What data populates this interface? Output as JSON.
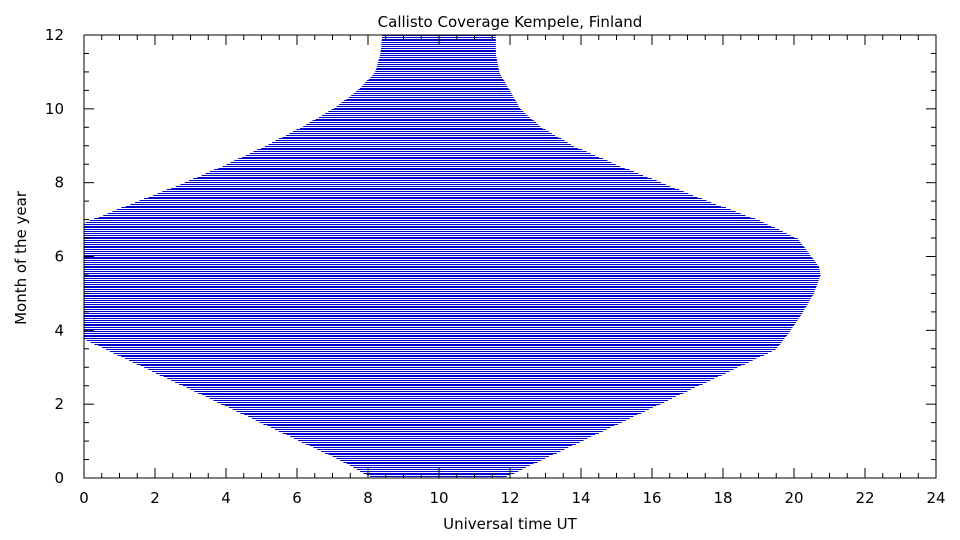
{
  "chart_data": {
    "type": "area",
    "title": "Callisto Coverage Kempele, Finland",
    "xlabel": "Universal time UT",
    "ylabel": "Month of the year",
    "xlim": [
      0,
      24
    ],
    "ylim": [
      0,
      12
    ],
    "x_ticks": [
      "0",
      "2",
      "4",
      "6",
      "8",
      "10",
      "12",
      "14",
      "16",
      "18",
      "20",
      "22",
      "24"
    ],
    "y_ticks": [
      "0",
      "2",
      "4",
      "6",
      "8",
      "10",
      "12"
    ],
    "grid": false,
    "fill_color": "#0000cc",
    "series": [
      {
        "month": [
          0.0,
          0.5,
          1.0,
          1.5,
          2.0,
          2.5,
          3.0,
          3.5,
          4.0,
          4.5,
          5.0,
          5.5,
          5.75,
          6.0,
          6.5,
          7.0,
          7.5,
          8.0,
          8.5,
          9.0,
          9.5,
          10.0,
          10.5,
          11.0,
          11.5,
          12.0
        ],
        "start_ut": [
          8.15,
          7.2,
          6.1,
          5.0,
          3.9,
          2.8,
          1.7,
          0.6,
          -0.5,
          -1.2,
          -1.4,
          -1.6,
          -1.7,
          -1.5,
          -1.0,
          0.2,
          1.5,
          2.8,
          4.0,
          5.1,
          6.1,
          7.0,
          7.7,
          8.2,
          8.35,
          8.4
        ],
        "end_ut": [
          11.8,
          12.9,
          14.0,
          15.1,
          16.2,
          17.3,
          18.4,
          19.5,
          19.9,
          20.25,
          20.55,
          20.75,
          20.7,
          20.5,
          20.1,
          19.0,
          17.6,
          16.3,
          15.0,
          13.8,
          12.9,
          12.3,
          12.0,
          11.7,
          11.6,
          11.6
        ]
      }
    ]
  }
}
